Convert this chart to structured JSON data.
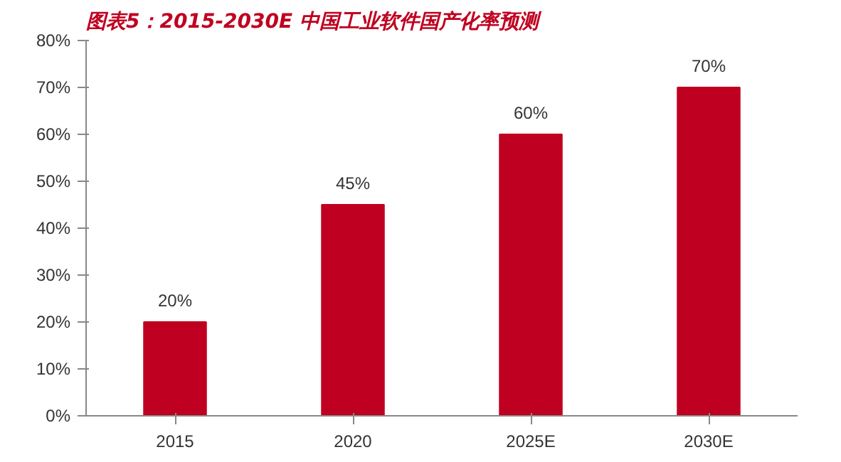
{
  "chart_data": {
    "type": "bar",
    "title": "图表5：2015-2030E 中国工业软件国产化率预测",
    "categories": [
      "2015",
      "2020",
      "2025E",
      "2030E"
    ],
    "values": [
      20,
      45,
      60,
      70
    ],
    "color": "#c00020",
    "value_labels": [
      "20%",
      "45%",
      "60%",
      "70%"
    ],
    "ylim": [
      0,
      80
    ],
    "yticks": [
      {
        "value": 0,
        "label": "0%"
      },
      {
        "value": 10,
        "label": "10%"
      },
      {
        "value": 20,
        "label": "20%"
      },
      {
        "value": 30,
        "label": "30%"
      },
      {
        "value": 40,
        "label": "40%"
      },
      {
        "value": 50,
        "label": "50%"
      },
      {
        "value": 60,
        "label": "60%"
      },
      {
        "value": 70,
        "label": "70%"
      },
      {
        "value": 80,
        "label": "80%"
      }
    ],
    "grid": false
  }
}
